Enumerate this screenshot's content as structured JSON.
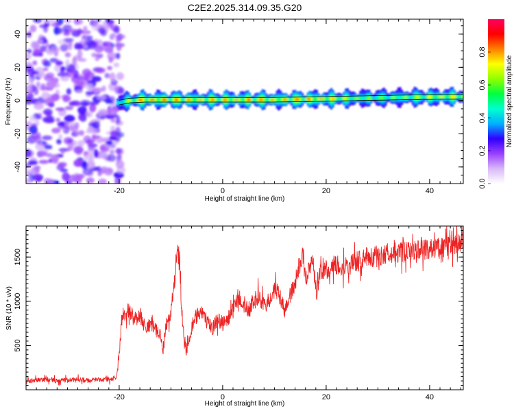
{
  "chart_data": [
    {
      "type": "heatmap",
      "title": "C2E2.2025.314.09.35.G20",
      "xlabel": "Height of straight line (km)",
      "ylabel": "Frequency (Hz)",
      "xlim": [
        -38,
        46.5
      ],
      "ylim": [
        -50,
        49
      ],
      "xticks": [
        -20,
        0,
        20,
        40
      ],
      "yticks": [
        -40,
        -20,
        0,
        20,
        40
      ],
      "xtick_labels": [
        "-20",
        "0",
        "20",
        "40"
      ],
      "ytick_labels": [
        "-40",
        "-20",
        "0",
        "20",
        "40"
      ],
      "noise_region_x": [
        -38,
        -20
      ],
      "signal_trace": {
        "description_points": [
          {
            "x": -20.5,
            "freq": -1.5,
            "amp": 0.35
          },
          {
            "x": -18,
            "freq": 0,
            "amp": 0.7
          },
          {
            "x": -15,
            "freq": 0.5,
            "amp": 0.9
          },
          {
            "x": -10,
            "freq": 0.5,
            "amp": 0.85
          },
          {
            "x": -5,
            "freq": 0.5,
            "amp": 0.8
          },
          {
            "x": 0,
            "freq": 0.5,
            "amp": 0.82
          },
          {
            "x": 5,
            "freq": 0.5,
            "amp": 0.85
          },
          {
            "x": 10,
            "freq": 0.5,
            "amp": 0.8
          },
          {
            "x": 15,
            "freq": 0.7,
            "amp": 0.85
          },
          {
            "x": 20,
            "freq": 1.0,
            "amp": 0.8
          },
          {
            "x": 25,
            "freq": 1.3,
            "amp": 0.6
          },
          {
            "x": 30,
            "freq": 1.6,
            "amp": 0.55
          },
          {
            "x": 35,
            "freq": 1.9,
            "amp": 0.6
          },
          {
            "x": 40,
            "freq": 2.1,
            "amp": 0.7
          },
          {
            "x": 46.5,
            "freq": 2.3,
            "amp": 0.75
          }
        ]
      },
      "colorbar": {
        "label": "Normalized spectral amplitude",
        "range": [
          0,
          1
        ],
        "ticks": [
          0.0,
          0.2,
          0.4,
          0.6,
          0.8
        ],
        "tick_labels": [
          "0.0",
          "0.2",
          "0.4",
          "0.6",
          "0.8"
        ],
        "colors": [
          "#ffffff",
          "#d8b8f8",
          "#9a40ff",
          "#3000ff",
          "#00b0ff",
          "#00ffd0",
          "#00ff40",
          "#90ff00",
          "#ffff00",
          "#ff8000",
          "#ff0000",
          "#ff0060"
        ]
      }
    },
    {
      "type": "line",
      "title": "",
      "xlabel": "Height of straight line (km)",
      "ylabel": "SNR (10 * v/v)",
      "xlim": [
        -38,
        46.5
      ],
      "ylim": [
        0,
        1850
      ],
      "xticks": [
        -20,
        0,
        20,
        40
      ],
      "yticks": [
        500,
        1000,
        1500
      ],
      "xtick_labels": [
        "-20",
        "0",
        "20",
        "40"
      ],
      "ytick_labels": [
        "500",
        "1000",
        "1500"
      ],
      "color": "#ee2222",
      "series": [
        {
          "name": "SNR",
          "x": [
            -38,
            -36,
            -34,
            -32,
            -30,
            -28,
            -26,
            -24,
            -22,
            -20.5,
            -20,
            -19.5,
            -19,
            -18,
            -17,
            -16,
            -15,
            -14,
            -13,
            -12,
            -11.5,
            -11,
            -10,
            -9.5,
            -9,
            -8.5,
            -8,
            -7.5,
            -7,
            -6.5,
            -6,
            -5,
            -4,
            -3,
            -2,
            -1,
            0,
            1,
            2,
            3,
            4,
            5,
            6,
            7,
            8,
            9,
            10,
            11,
            12,
            13,
            14,
            15,
            15.5,
            16,
            17,
            17.5,
            18,
            19,
            20,
            21,
            22,
            24,
            26,
            28,
            30,
            32,
            34,
            36,
            38,
            40,
            42,
            44,
            46.5
          ],
          "values": [
            90,
            110,
            120,
            100,
            110,
            120,
            100,
            120,
            110,
            140,
            400,
            800,
            900,
            880,
            800,
            850,
            700,
            750,
            680,
            600,
            450,
            700,
            900,
            1100,
            1450,
            1550,
            1000,
            600,
            450,
            500,
            700,
            850,
            900,
            750,
            700,
            800,
            750,
            800,
            900,
            1050,
            950,
            900,
            1000,
            1050,
            950,
            1000,
            1150,
            1050,
            900,
            1050,
            1200,
            1450,
            1550,
            1250,
            1400,
            1500,
            1050,
            1350,
            1350,
            1400,
            1400,
            1400,
            1450,
            1500,
            1500,
            1550,
            1550,
            1550,
            1600,
            1600,
            1600,
            1620,
            1650
          ]
        }
      ]
    }
  ]
}
